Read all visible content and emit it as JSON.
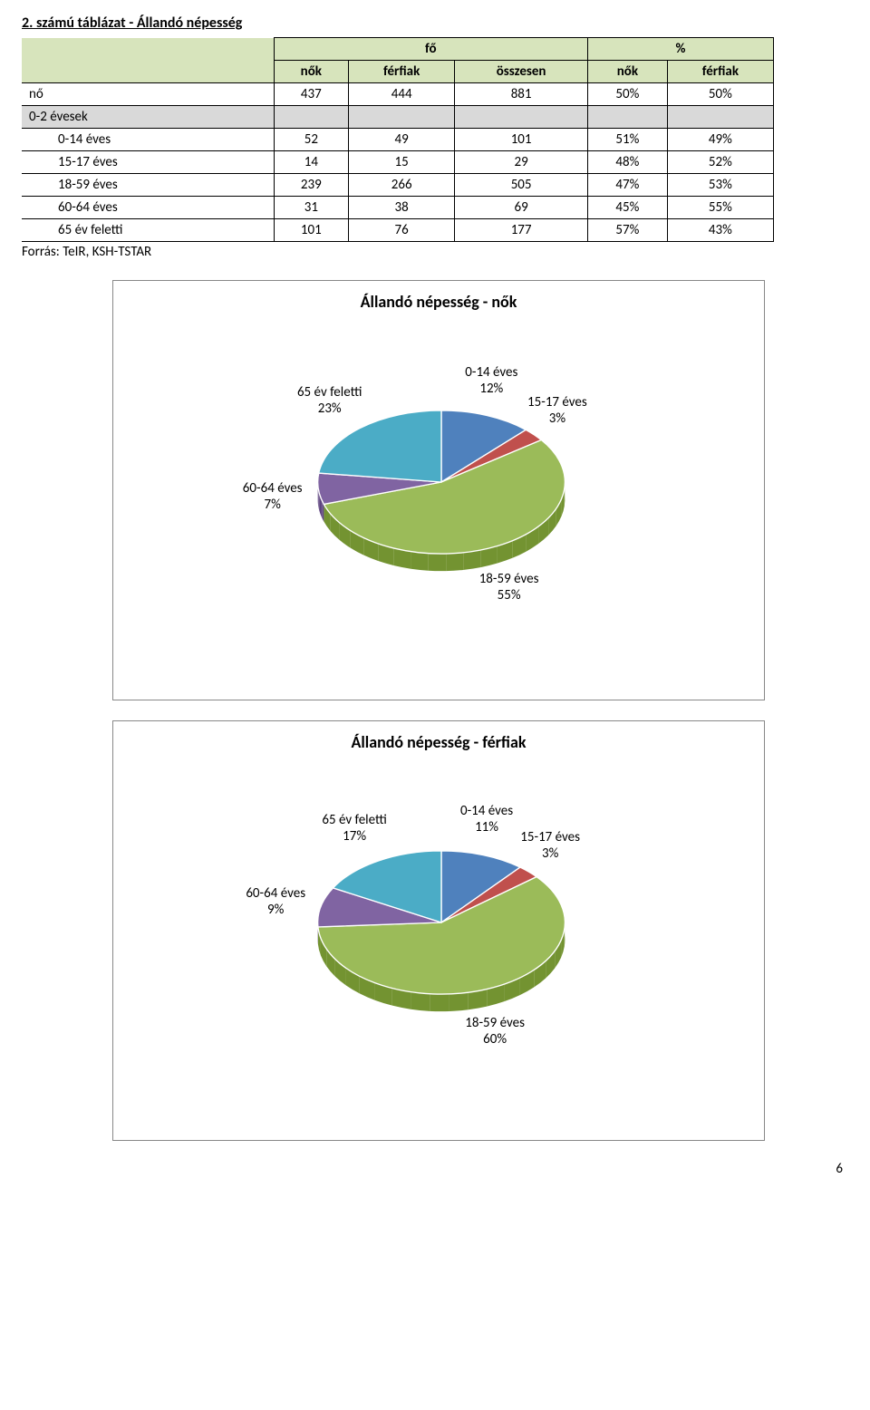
{
  "title": "2. számú táblázat - Állandó népesség",
  "table": {
    "col_head_fo": "fő",
    "col_head_pct": "%",
    "col_sub_nok": "nők",
    "col_sub_ferfiak": "férfiak",
    "col_sub_osszesen": "összesen",
    "header_bg": "#d7e4bc",
    "grey_bg": "#d9d9d9",
    "rows": [
      {
        "label": "nő",
        "nok": "437",
        "ferfiak": "444",
        "ossz": "881",
        "pnok": "50%",
        "pferfiak": "50%",
        "grey": false
      },
      {
        "label": "0-2 évesek",
        "nok": "",
        "ferfiak": "",
        "ossz": "",
        "pnok": "",
        "pferfiak": "",
        "grey": true
      },
      {
        "label": "0-14 éves",
        "nok": "52",
        "ferfiak": "49",
        "ossz": "101",
        "pnok": "51%",
        "pferfiak": "49%",
        "grey": false
      },
      {
        "label": "15-17 éves",
        "nok": "14",
        "ferfiak": "15",
        "ossz": "29",
        "pnok": "48%",
        "pferfiak": "52%",
        "grey": false
      },
      {
        "label": "18-59 éves",
        "nok": "239",
        "ferfiak": "266",
        "ossz": "505",
        "pnok": "47%",
        "pferfiak": "53%",
        "grey": false
      },
      {
        "label": "60-64 éves",
        "nok": "31",
        "ferfiak": "38",
        "ossz": "69",
        "pnok": "45%",
        "pferfiak": "55%",
        "grey": false
      },
      {
        "label": "65 év feletti",
        "nok": "101",
        "ferfiak": "76",
        "ossz": "177",
        "pnok": "57%",
        "pferfiak": "43%",
        "grey": false
      }
    ]
  },
  "source_line": "Forrás: TeIR, KSH-TSTAR",
  "chart1": {
    "title": "Állandó népesség - nők",
    "type": "pie",
    "slices": [
      {
        "label": "0-14 éves",
        "pct_text": "12%",
        "value": 12,
        "color": "#4f81bd"
      },
      {
        "label": "15-17 éves",
        "pct_text": "3%",
        "value": 3,
        "color": "#c0504d"
      },
      {
        "label": "18-59 éves",
        "pct_text": "55%",
        "value": 55,
        "color": "#9bbb59"
      },
      {
        "label": "60-64 éves",
        "pct_text": "7%",
        "value": 7,
        "color": "#8064a2"
      },
      {
        "label": "65 év feletti",
        "pct_text": "23%",
        "value": 23,
        "color": "#4bacc6"
      }
    ],
    "label_font_size": 15,
    "title_font_size": 18
  },
  "chart2": {
    "title": "Állandó népesség - férfiak",
    "type": "pie",
    "slices": [
      {
        "label": "0-14 éves",
        "pct_text": "11%",
        "value": 11,
        "color": "#4f81bd"
      },
      {
        "label": "15-17 éves",
        "pct_text": "3%",
        "value": 3,
        "color": "#c0504d"
      },
      {
        "label": "18-59 éves",
        "pct_text": "60%",
        "value": 60,
        "color": "#9bbb59"
      },
      {
        "label": "60-64 éves",
        "pct_text": "9%",
        "value": 9,
        "color": "#8064a2"
      },
      {
        "label": "65 év feletti",
        "pct_text": "17%",
        "value": 17,
        "color": "#4bacc6"
      }
    ],
    "label_font_size": 15,
    "title_font_size": 18
  },
  "page_number": "6"
}
